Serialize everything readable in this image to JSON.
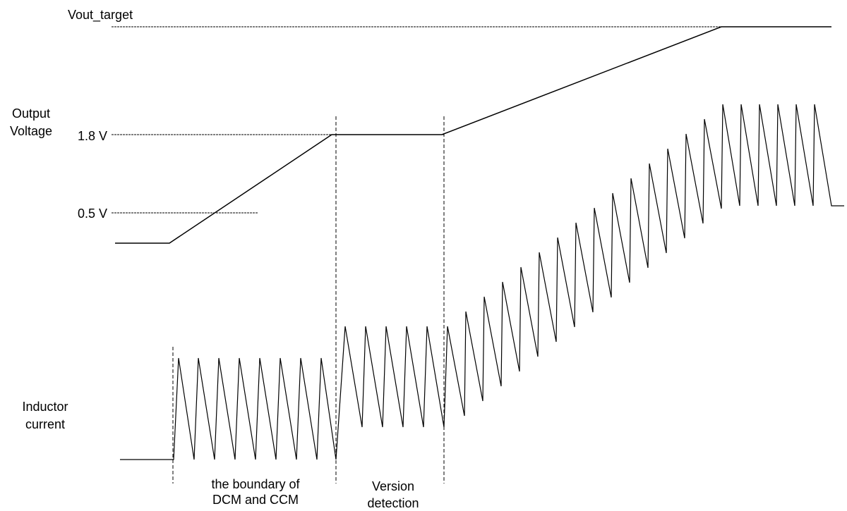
{
  "labels": {
    "vout_target": "Vout_target",
    "output_voltage": [
      "Output",
      "Voltage"
    ],
    "level_1_8v": "1.8 V",
    "level_0_5v": "0.5 V",
    "inductor_current": [
      "Inductor",
      "current"
    ],
    "phase_boundary": [
      "the boundary of",
      "DCM and CCM"
    ],
    "phase_detection": [
      "Version",
      "detection"
    ]
  },
  "colors": {
    "ink": "#000000",
    "background": "#ffffff"
  }
}
